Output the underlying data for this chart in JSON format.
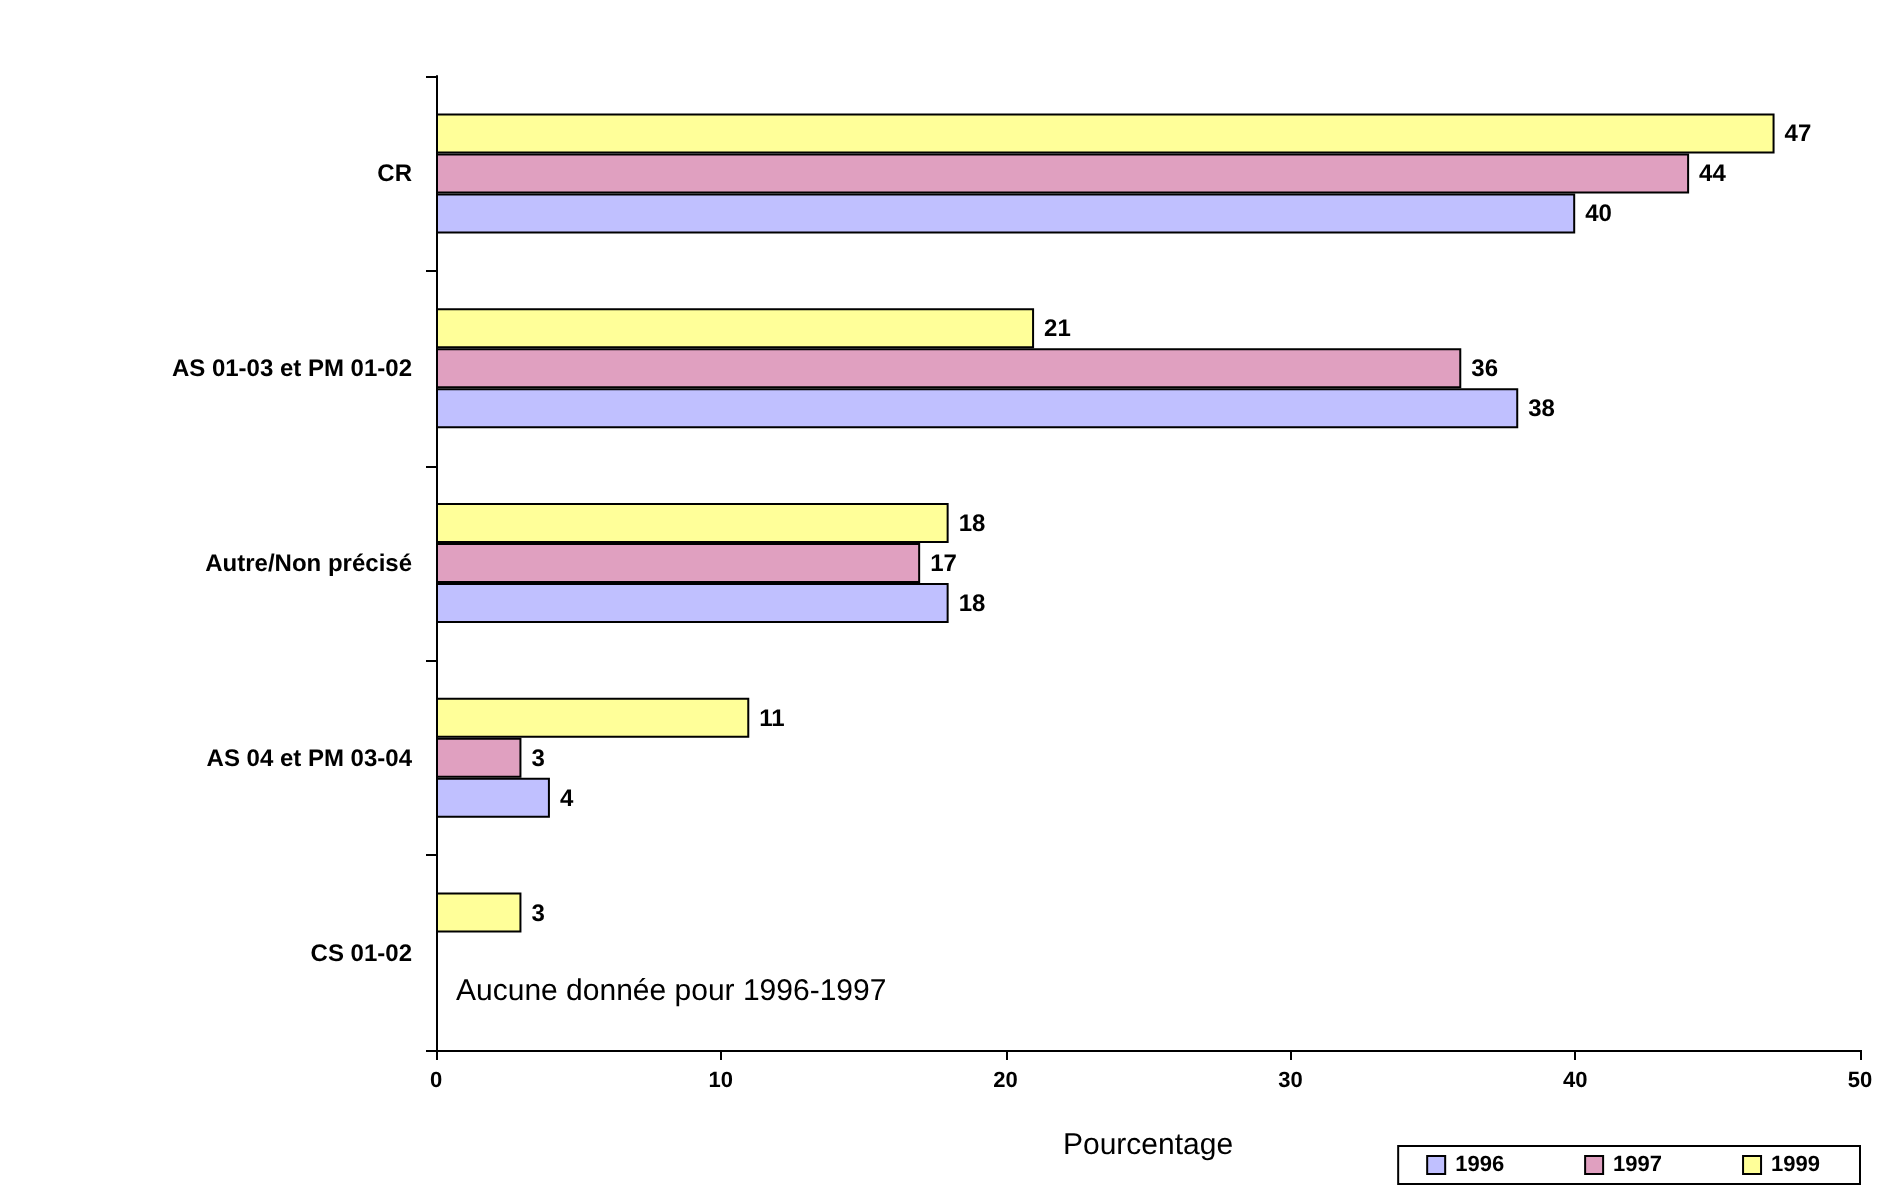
{
  "chart_data": {
    "type": "bar",
    "orientation": "horizontal",
    "xlabel": "Pourcentage",
    "categories": [
      "CR",
      "AS 01-03 et PM 01-02",
      "Autre/Non précisé",
      "AS 04 et PM 03-04",
      "CS 01-02"
    ],
    "series": [
      {
        "name": "1996",
        "color": "#c0c0ff",
        "values": [
          40,
          38,
          18,
          4,
          null
        ]
      },
      {
        "name": "1997",
        "color": "#e0a0c0",
        "values": [
          44,
          36,
          17,
          3,
          null
        ]
      },
      {
        "name": "1999",
        "color": "#ffff99",
        "values": [
          47,
          21,
          18,
          11,
          3
        ]
      }
    ],
    "xlim": [
      0,
      50
    ],
    "xticks": [
      0,
      10,
      20,
      30,
      40,
      50
    ],
    "grid": false,
    "legend": "bottom right",
    "data_labels": true,
    "annotations": [
      "Aucune donnée pour 1996-1997"
    ]
  }
}
